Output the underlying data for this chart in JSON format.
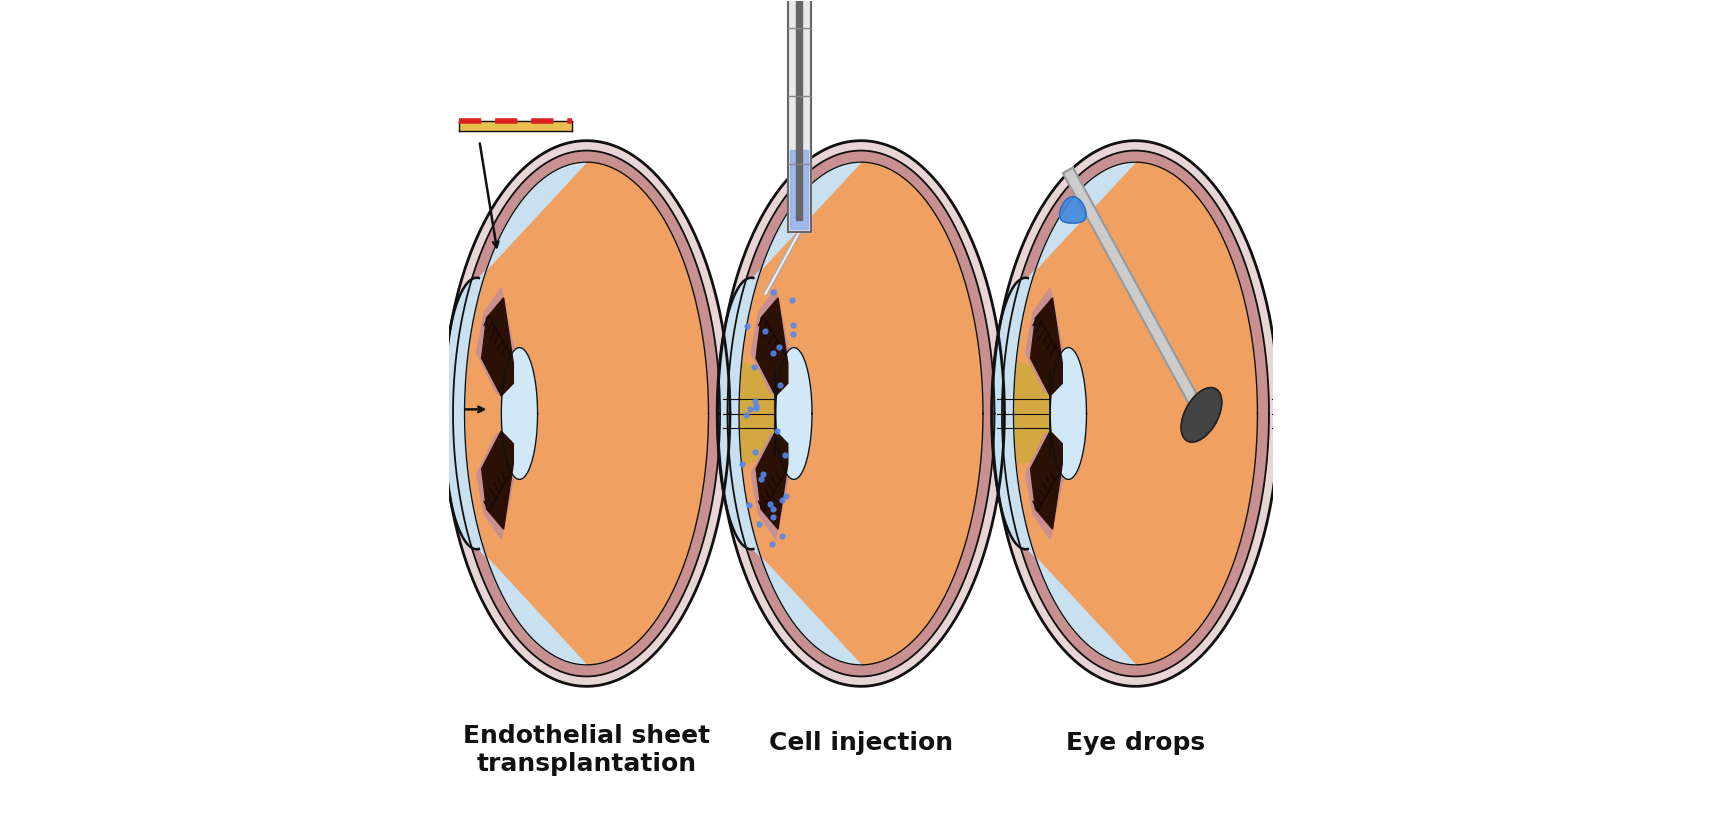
{
  "background_color": "#ffffff",
  "labels": [
    "Endothelial sheet\ntransplantation",
    "Cell injection",
    "Eye drops"
  ],
  "label_fontsize": 18,
  "colors": {
    "sclera": "#e8d5d5",
    "choroid": "#c89090",
    "vitreous": "#f0a060",
    "cornea_fill": "#c8e0f0",
    "ant_chamber": "#d8eef8",
    "lens": "#d0e8f8",
    "optic_nerve": "#d4a840",
    "dark_tissue": "#2a1005",
    "outline": "#111111",
    "sheet_yellow": "#e8c050",
    "sheet_red": "#dd2020",
    "inject_blue": "#5588ee",
    "drop_blue": "#4488dd",
    "syringe_body": "#dddddd",
    "dropper_tube": "#cccccc",
    "dropper_bulb": "#444444"
  }
}
